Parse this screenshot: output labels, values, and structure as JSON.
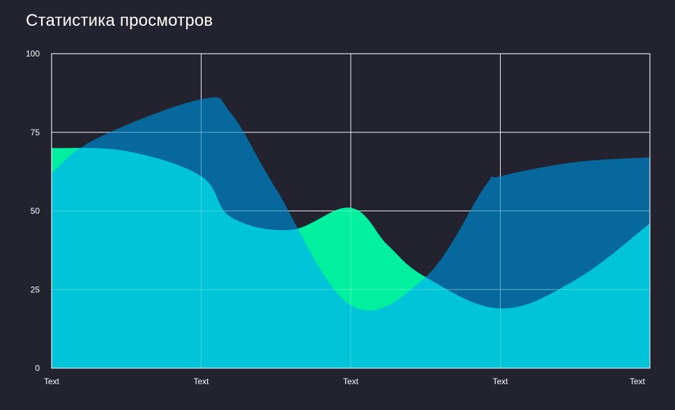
{
  "chart_data": {
    "type": "area",
    "title": "Статистика просмотров",
    "xlabel": "",
    "ylabel": "",
    "categories": [
      "Text",
      "Text",
      "Text",
      "Text",
      "Text"
    ],
    "ylim": [
      0,
      100
    ],
    "yticks": [
      0,
      25,
      50,
      75,
      100
    ],
    "grid": true,
    "legend": "none",
    "series": [
      {
        "points": [
          [
            0,
            70
          ],
          [
            0.5,
            69
          ],
          [
            1,
            61
          ],
          [
            1.2,
            48
          ],
          [
            1.6,
            44
          ],
          [
            2,
            51
          ],
          [
            2.25,
            39
          ],
          [
            2.5,
            29
          ],
          [
            3,
            19
          ],
          [
            3.5,
            28
          ],
          [
            4,
            46
          ]
        ],
        "color": "#00f0a0"
      },
      {
        "points": [
          [
            0,
            62
          ],
          [
            0.3,
            73
          ],
          [
            1,
            85.5
          ],
          [
            1.2,
            81
          ],
          [
            1.5,
            57
          ],
          [
            2,
            20
          ],
          [
            2.5,
            29
          ],
          [
            2.9,
            58
          ],
          [
            3,
            61
          ],
          [
            3.5,
            65.5
          ],
          [
            4,
            67
          ]
        ],
        "color": "#0078b4",
        "opacity": 0.82
      }
    ],
    "overlap_color": "#00c4d8"
  }
}
